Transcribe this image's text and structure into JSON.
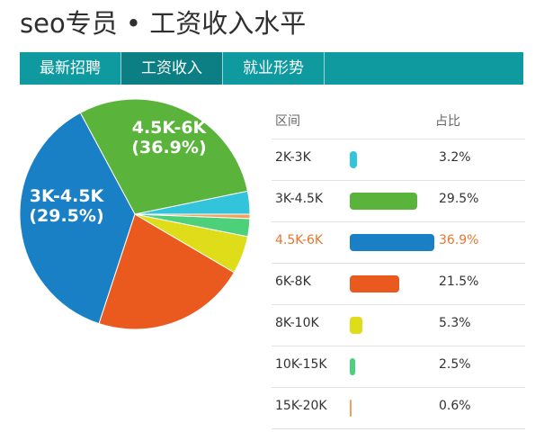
{
  "page_title": "seo专员 • 工资收入水平",
  "tabs": [
    {
      "label": "最新招聘",
      "active": false
    },
    {
      "label": "工资收入",
      "active": true
    },
    {
      "label": "就业形势",
      "active": false
    }
  ],
  "table_headers": {
    "range": "区间",
    "share": "占比"
  },
  "chart_data": {
    "type": "pie",
    "title": "",
    "highlight_index": 2,
    "slices": [
      {
        "label": "2K-3K",
        "value": 3.2,
        "pct_label": "3.2%",
        "color": "#33c4dc"
      },
      {
        "label": "3K-4.5K",
        "value": 29.5,
        "pct_label": "29.5%",
        "color": "#5ab33b",
        "pie_label": "3K-4.5K\n(29.5%)"
      },
      {
        "label": "4.5K-6K",
        "value": 36.9,
        "pct_label": "36.9%",
        "color": "#1a80c5",
        "pie_label": "4.5K-6K\n(36.9%)"
      },
      {
        "label": "6K-8K",
        "value": 21.5,
        "pct_label": "21.5%",
        "color": "#ea5a1e"
      },
      {
        "label": "8K-10K",
        "value": 5.3,
        "pct_label": "5.3%",
        "color": "#dfdc1a"
      },
      {
        "label": "10K-15K",
        "value": 2.5,
        "pct_label": "2.5%",
        "color": "#4cd07a"
      },
      {
        "label": "15K-20K",
        "value": 0.6,
        "pct_label": "0.6%",
        "color": "#f0a060"
      }
    ]
  }
}
